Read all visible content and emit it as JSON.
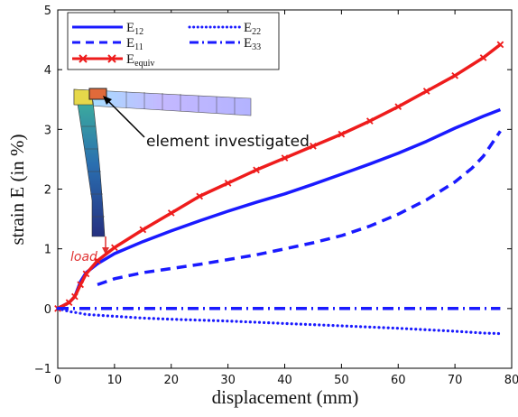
{
  "chart_data": {
    "type": "line",
    "xlabel": "displacement (mm)",
    "ylabel": "strain E (in %)",
    "xlim": [
      0,
      80
    ],
    "ylim": [
      -1,
      5
    ],
    "xticks": [
      0,
      10,
      20,
      30,
      40,
      50,
      60,
      70,
      80
    ],
    "yticks": [
      -1,
      0,
      1,
      2,
      3,
      4,
      5
    ],
    "grid": false,
    "legend_position": "top-left",
    "annotations": [
      "element investigated",
      "load"
    ],
    "colors": {
      "blue": "#1a1aff",
      "red": "#ee1c1c"
    },
    "series": [
      {
        "name": "E12",
        "label_main": "E",
        "label_sub": "12",
        "style": "solid",
        "color": "#1a1aff",
        "x": [
          0,
          2,
          3,
          4,
          5,
          7,
          10,
          15,
          20,
          25,
          30,
          35,
          40,
          45,
          50,
          55,
          60,
          65,
          70,
          75,
          78
        ],
        "y": [
          0,
          0.1,
          0.2,
          0.45,
          0.6,
          0.75,
          0.92,
          1.12,
          1.3,
          1.47,
          1.63,
          1.78,
          1.92,
          2.08,
          2.25,
          2.42,
          2.6,
          2.8,
          3.02,
          3.22,
          3.33
        ]
      },
      {
        "name": "E11",
        "label_main": "E",
        "label_sub": "11",
        "style": "dashed",
        "color": "#1a1aff",
        "x": [
          7,
          10,
          15,
          20,
          25,
          30,
          35,
          40,
          45,
          50,
          55,
          60,
          65,
          70,
          73,
          75,
          78
        ],
        "y": [
          0.4,
          0.5,
          0.6,
          0.67,
          0.74,
          0.82,
          0.9,
          1.0,
          1.1,
          1.22,
          1.38,
          1.58,
          1.82,
          2.12,
          2.35,
          2.55,
          2.97
        ]
      },
      {
        "name": "Eequiv",
        "label_main": "E",
        "label_sub": "equiv",
        "style": "solid-markers",
        "color": "#ee1c1c",
        "x": [
          0,
          2,
          3,
          4,
          5,
          7,
          10,
          15,
          20,
          25,
          30,
          35,
          40,
          45,
          50,
          55,
          60,
          65,
          70,
          75,
          78
        ],
        "y": [
          0,
          0.1,
          0.2,
          0.4,
          0.58,
          0.8,
          1.02,
          1.32,
          1.6,
          1.88,
          2.1,
          2.32,
          2.52,
          2.72,
          2.92,
          3.14,
          3.38,
          3.64,
          3.9,
          4.2,
          4.42
        ]
      },
      {
        "name": "E22",
        "label_main": "E",
        "label_sub": "22",
        "style": "dotted",
        "color": "#1a1aff",
        "x": [
          0,
          2,
          4,
          5,
          10,
          15,
          20,
          30,
          40,
          50,
          60,
          70,
          75,
          78
        ],
        "y": [
          0,
          -0.05,
          -0.08,
          -0.1,
          -0.13,
          -0.16,
          -0.18,
          -0.21,
          -0.25,
          -0.29,
          -0.33,
          -0.38,
          -0.41,
          -0.42
        ]
      },
      {
        "name": "E33",
        "label_main": "E",
        "label_sub": "33",
        "style": "dashdot",
        "color": "#1a1aff",
        "x": [
          0,
          78
        ],
        "y": [
          0,
          0
        ]
      }
    ]
  }
}
